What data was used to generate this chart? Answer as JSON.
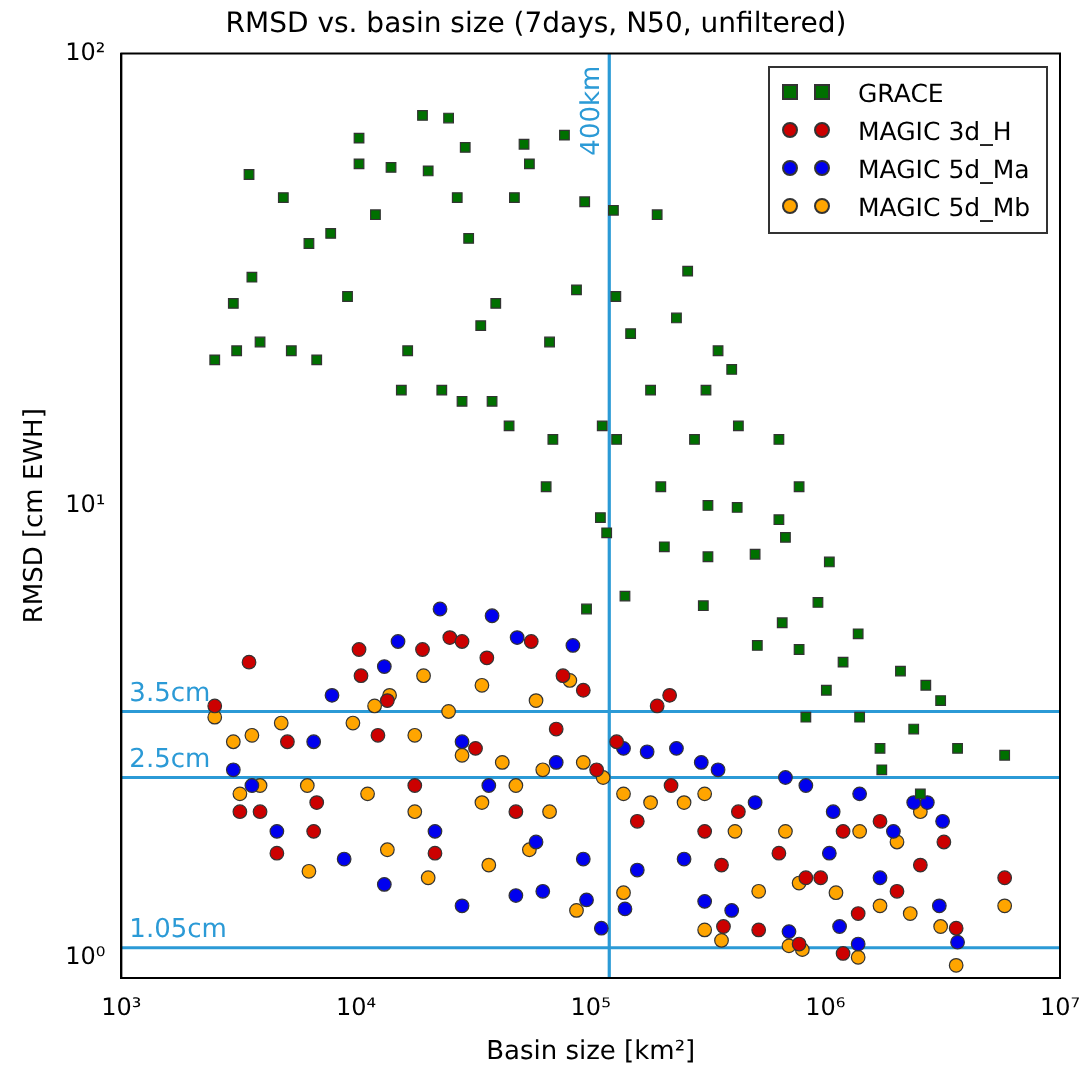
{
  "chart_data": {
    "type": "scatter",
    "title": "RMSD vs. basin size (7days, N50, unfiltered)",
    "xlabel": "Basin size [km²]",
    "ylabel": "RMSD [cm EWH]",
    "log": "xy",
    "xlim": [
      1000,
      10000000
    ],
    "ylim": [
      0.9,
      100
    ],
    "xticks": [
      {
        "value": 1000,
        "label": "10³"
      },
      {
        "value": 10000,
        "label": "10⁴"
      },
      {
        "value": 100000,
        "label": "10⁵"
      },
      {
        "value": 1000000,
        "label": "10⁶"
      },
      {
        "value": 10000000,
        "label": "10⁷"
      }
    ],
    "yticks": [
      {
        "value": 1,
        "label": "10⁰"
      },
      {
        "value": 10,
        "label": "10¹"
      },
      {
        "value": 100,
        "label": "10²"
      }
    ],
    "grid": false,
    "legend": "top right",
    "ref_lines": [
      {
        "axis": "x",
        "value": 120000,
        "label": "400km",
        "color": "#2b9ad6"
      },
      {
        "axis": "y",
        "value": 3.5,
        "label": "3.5cm",
        "color": "#2b9ad6"
      },
      {
        "axis": "y",
        "value": 2.5,
        "label": "2.5cm",
        "color": "#2b9ad6"
      },
      {
        "axis": "y",
        "value": 1.05,
        "label": "1.05cm",
        "color": "#2b9ad6"
      }
    ],
    "series": [
      {
        "name": "GRACE",
        "color": "#007000",
        "marker": "square",
        "x": [
          2500,
          3100,
          3900,
          3000,
          3500,
          4900,
          3600,
          5300,
          6300,
          6800,
          7800,
          9200,
          10300,
          10300,
          12100,
          14100,
          15600,
          16600,
          19200,
          20300,
          23200,
          24800,
          28300,
          29200,
          27000,
          30200,
          34000,
          38000,
          39400,
          44900,
          47300,
          52000,
          54800,
          64600,
          66800,
          69000,
          77300,
          87000,
          94300,
          112000,
          110000,
          117000,
          125000,
          128000,
          129000,
          148000,
          192000,
          180000,
          199000,
          232000,
          259000,
          277000,
          310000,
          316000,
          349000,
          399000,
          421000,
          426000,
          634000,
          773000,
          634000,
          676000,
          206000,
          316000,
          502000,
          1040000,
          96000,
          140000,
          302000,
          513000,
          655000,
          930000,
          773000,
          1010000,
          1190000,
          1380000,
          826000,
          1400000,
          1710000,
          2090000,
          2380000,
          2680000,
          3100000,
          3660000,
          5810000,
          1740000,
          2540000
        ],
        "values": [
          21,
          22,
          23,
          28,
          54,
          48,
          32,
          22,
          38,
          21,
          40,
          29,
          65,
          57,
          44,
          56,
          18,
          22,
          73,
          55,
          18,
          72,
          17,
          62,
          48,
          39,
          25,
          17,
          28,
          15,
          48,
          63,
          57,
          11,
          23,
          14,
          66,
          30,
          47,
          15,
          9.4,
          8.7,
          45,
          29,
          14,
          24,
          44,
          18,
          11,
          26,
          33,
          14,
          18,
          10,
          22,
          20,
          9.9,
          15,
          14,
          11,
          9.3,
          8.5,
          8.1,
          7.7,
          7.8,
          7.5,
          5.9,
          6.3,
          6.0,
          4.9,
          5.5,
          6.1,
          4.8,
          3.9,
          4.5,
          5.2,
          3.4,
          3.4,
          2.9,
          4.3,
          3.2,
          4.0,
          3.7,
          2.9,
          2.8,
          2.6,
          2.3
        ]
      },
      {
        "name": "MAGIC 3d_H",
        "color": "#cc0000",
        "marker": "circle",
        "x": [
          3500,
          2500,
          10300,
          19200,
          25100,
          28300,
          36100,
          55800,
          76200,
          93000,
          217000,
          192000,
          13600,
          10500,
          5100,
          6800,
          3900,
          3200,
          4600,
          6600,
          12400,
          17800,
          21700,
          32300,
          48000,
          71300,
          106000,
          129000,
          158000,
          220000,
          306000,
          361000,
          520000,
          368000,
          634000,
          826000,
          1190000,
          1380000,
          1710000,
          2020000,
          2540000,
          3200000,
          3610000,
          5810000,
          955000,
          773000,
          1190000,
          426000
        ],
        "values": [
          4.5,
          3.6,
          4.8,
          4.8,
          5.1,
          5.0,
          4.6,
          5.0,
          4.2,
          3.9,
          3.8,
          3.6,
          3.7,
          4.2,
          3.0,
          2.2,
          2.1,
          2.1,
          1.7,
          1.9,
          3.1,
          2.4,
          1.7,
          2.9,
          2.1,
          3.2,
          2.6,
          3.0,
          2.0,
          2.4,
          1.9,
          1.6,
          1.15,
          1.17,
          1.7,
          1.5,
          1.9,
          1.25,
          2.0,
          1.4,
          1.6,
          1.8,
          1.16,
          1.5,
          1.5,
          1.07,
          1.02,
          2.1
        ]
      },
      {
        "name": "MAGIC 5d_Ma",
        "color": "#0000ee",
        "marker": "circle",
        "x": [
          22800,
          38000,
          84000,
          48600,
          15100,
          13200,
          7900,
          3000,
          3600,
          4600,
          6600,
          8900,
          13200,
          28300,
          48000,
          62500,
          111000,
          140000,
          96000,
          138000,
          174000,
          232000,
          296000,
          349000,
          250000,
          306000,
          399000,
          502000,
          676000,
          826000,
          1080000,
          700000,
          1040000,
          1150000,
          1380000,
          1400000,
          1710000,
          2380000,
          2720000,
          3060000,
          3660000,
          3160000,
          1950000,
          36800,
          21700,
          58500,
          93000,
          158000,
          28300,
          71300
        ],
        "values": [
          5.9,
          5.7,
          4.9,
          5.1,
          5.0,
          4.4,
          3.8,
          2.6,
          2.4,
          1.9,
          3.0,
          1.65,
          1.45,
          1.3,
          1.37,
          1.4,
          1.16,
          1.28,
          1.34,
          2.9,
          2.85,
          2.9,
          2.7,
          2.6,
          1.65,
          1.33,
          1.27,
          2.2,
          2.5,
          2.4,
          2.1,
          1.14,
          1.7,
          1.17,
          1.07,
          2.3,
          1.5,
          2.2,
          2.2,
          1.3,
          1.08,
          2.0,
          1.9,
          2.4,
          1.9,
          1.8,
          1.65,
          1.56,
          3.0,
          2.7
        ]
      },
      {
        "name": "MAGIC 5d_Mb",
        "color": "#ffa500",
        "marker": "circle",
        "x": [
          2500,
          3000,
          3600,
          4800,
          3200,
          3900,
          6300,
          6200,
          9700,
          12000,
          13900,
          19400,
          34400,
          58500,
          81500,
          24800,
          17800,
          28300,
          42000,
          62500,
          93000,
          113000,
          138000,
          180000,
          250000,
          306000,
          412000,
          520000,
          676000,
          773000,
          1110000,
          1400000,
          1710000,
          2020000,
          2540000,
          2300000,
          3100000,
          3610000,
          5810000,
          306000,
          361000,
          700000,
          798000,
          1380000,
          13600,
          20300,
          36800,
          54800,
          87000,
          138000,
          11200,
          17800,
          34400,
          66800,
          48000
        ],
        "values": [
          3.4,
          3.0,
          3.1,
          3.3,
          2.3,
          2.4,
          1.55,
          2.4,
          3.3,
          3.6,
          3.8,
          4.2,
          4.0,
          3.7,
          4.1,
          3.5,
          3.1,
          2.8,
          2.7,
          2.6,
          2.7,
          2.5,
          2.3,
          2.2,
          2.2,
          2.3,
          1.9,
          1.4,
          1.9,
          1.46,
          1.39,
          1.9,
          1.3,
          1.8,
          2.1,
          1.25,
          1.17,
          0.96,
          1.3,
          1.15,
          1.09,
          1.06,
          1.04,
          1.0,
          1.73,
          1.5,
          1.6,
          1.73,
          1.27,
          1.39,
          2.3,
          2.1,
          2.2,
          2.1,
          2.4
        ]
      }
    ]
  }
}
